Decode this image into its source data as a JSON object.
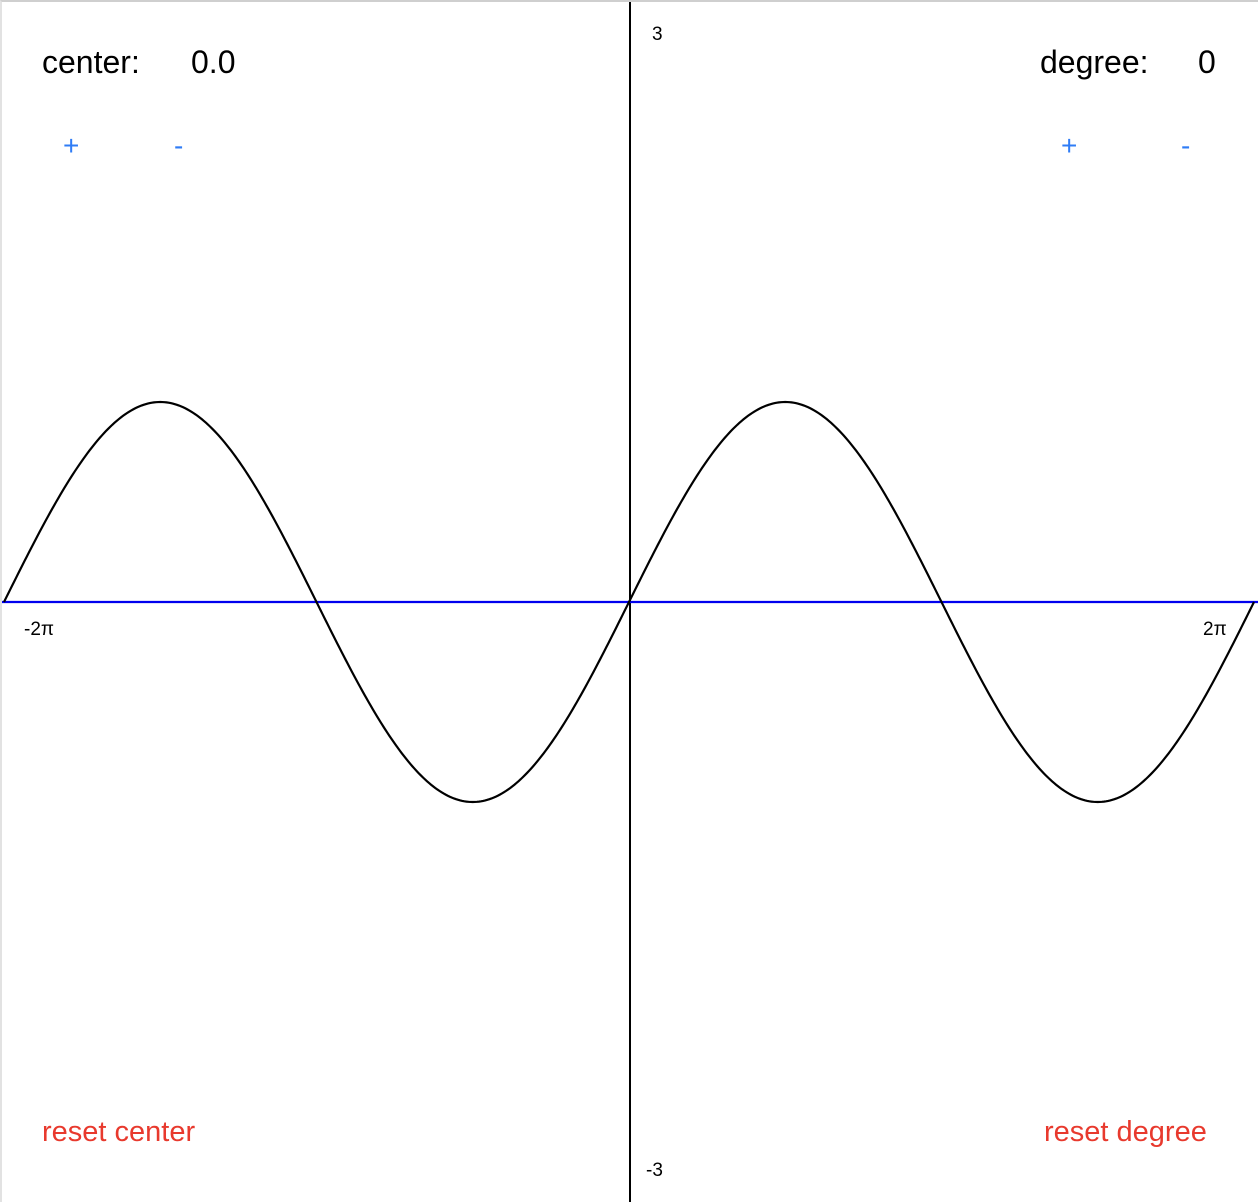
{
  "center": {
    "label": "center:",
    "value": "0.0",
    "plus_label": "+",
    "minus_label": "-",
    "reset_label": "reset center"
  },
  "degree": {
    "label": "degree:",
    "value": "0",
    "plus_label": "+",
    "minus_label": "-",
    "reset_label": "reset degree"
  },
  "axes": {
    "y_max_label": "3",
    "y_min_label": "-3",
    "x_min_label": "-2π",
    "x_max_label": "2π"
  },
  "colors": {
    "button_blue": "#2f7cf6",
    "reset_red": "#e8392d",
    "baseline_blue": "#0000ee",
    "curve": "#000000"
  },
  "chart_data": {
    "type": "line",
    "function": "sin(x)",
    "xlim": [
      -6.2832,
      6.2832
    ],
    "ylim": [
      -3,
      3
    ],
    "x_tick_labels": [
      "-2π",
      "2π"
    ],
    "y_tick_labels": [
      "3",
      "-3"
    ],
    "series": [
      {
        "values_from": "sin(x)",
        "color": "#000000"
      },
      {
        "values_from": "0",
        "color": "#0000ee"
      }
    ]
  }
}
